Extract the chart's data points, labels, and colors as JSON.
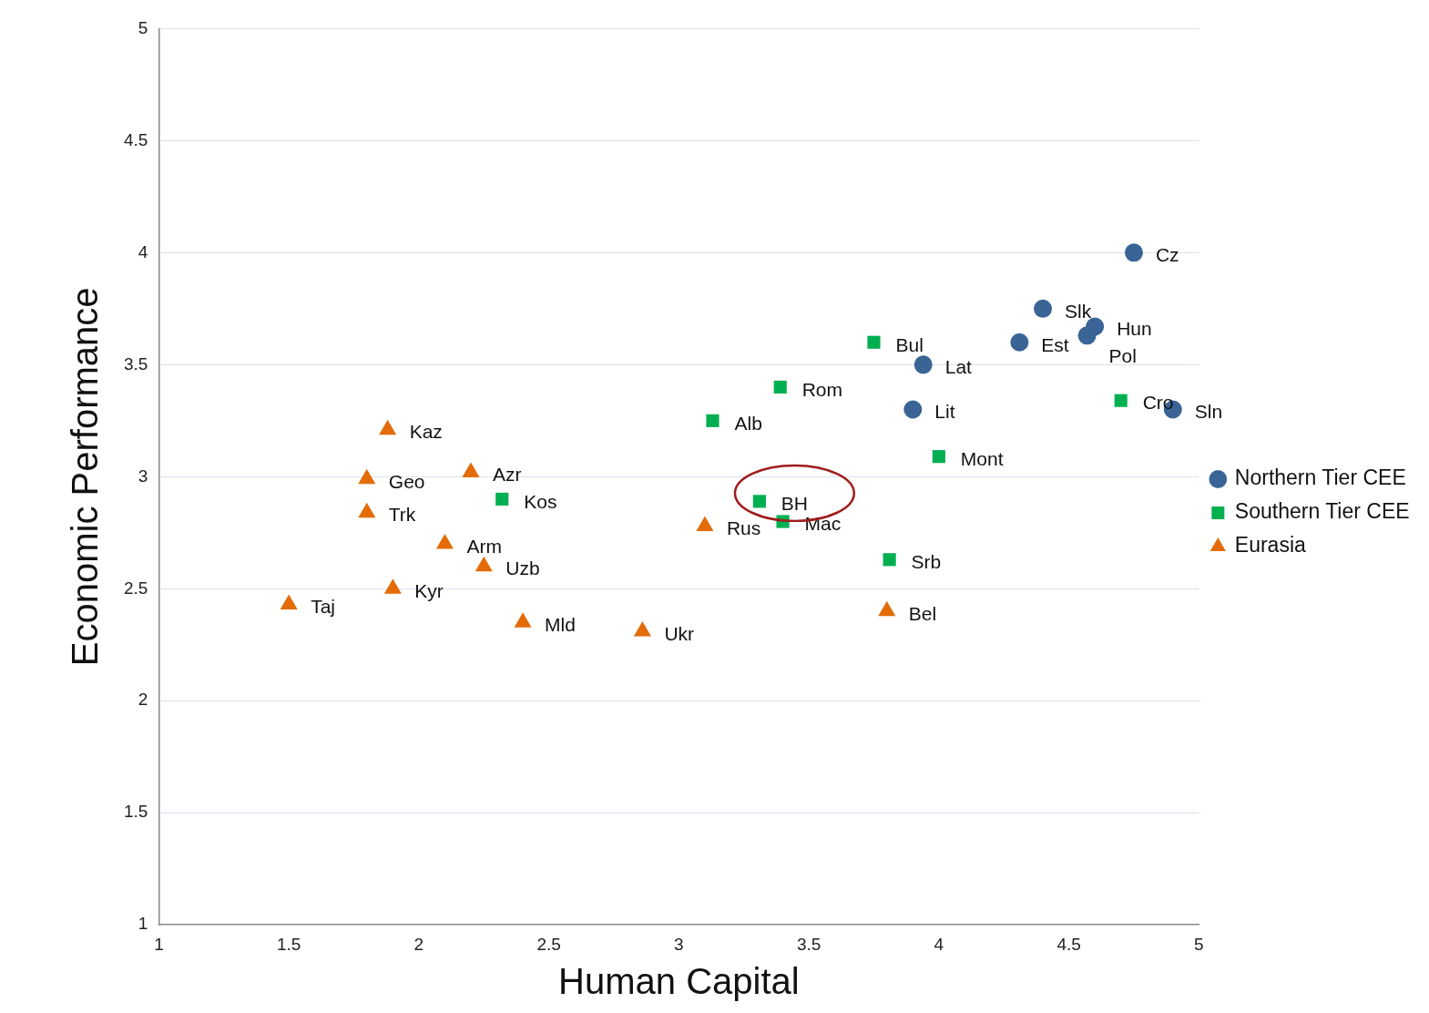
{
  "chart_data": {
    "type": "scatter",
    "xlabel": "Human Capital",
    "ylabel": "Economic Performance",
    "xlim": [
      1,
      5
    ],
    "xticks": [
      1,
      1.5,
      2,
      2.5,
      3,
      3.5,
      4,
      4.5,
      5
    ],
    "ylim": [
      1,
      5
    ],
    "yticks": [
      1,
      1.5,
      2,
      2.5,
      3,
      3.5,
      4,
      4.5,
      5
    ],
    "grid": "y",
    "legend": "right",
    "series": [
      {
        "name": "Northern Tier CEE",
        "color": "#3a6496",
        "marker": "circle",
        "x": [
          4.75,
          4.4,
          4.6,
          4.57,
          4.31,
          3.94,
          3.9,
          4.9
        ],
        "values": [
          4.0,
          3.75,
          3.67,
          3.63,
          3.6,
          3.5,
          3.3,
          3.3
        ]
      },
      {
        "name": "Southern Tier CEE",
        "color": "#00b050",
        "marker": "square",
        "x": [
          3.75,
          3.39,
          3.13,
          4.7,
          4.0,
          2.32,
          3.31,
          3.4,
          3.81
        ],
        "values": [
          3.6,
          3.4,
          3.25,
          3.34,
          3.09,
          2.9,
          2.89,
          2.8,
          2.63
        ]
      },
      {
        "name": "Eurasia",
        "color": "#e36c09",
        "marker": "triangle",
        "x": [
          1.88,
          1.8,
          2.2,
          1.8,
          2.1,
          2.25,
          1.9,
          1.5,
          2.4,
          2.86,
          3.1,
          3.8
        ],
        "values": [
          3.21,
          2.99,
          3.02,
          2.84,
          2.7,
          2.6,
          2.5,
          2.43,
          2.35,
          2.31,
          2.78,
          2.4
        ]
      }
    ],
    "annotations": [
      {
        "text": "Cz",
        "x": 4.75,
        "y": 4.0
      },
      {
        "text": "Slk",
        "x": 4.4,
        "y": 3.75
      },
      {
        "text": "Hun",
        "x": 4.6,
        "y": 3.67
      },
      {
        "text": "Pol",
        "x": 4.57,
        "y": 3.63
      },
      {
        "text": "Est",
        "x": 4.31,
        "y": 3.6
      },
      {
        "text": "Lat",
        "x": 3.94,
        "y": 3.5
      },
      {
        "text": "Lit",
        "x": 3.9,
        "y": 3.3
      },
      {
        "text": "Sln",
        "x": 4.9,
        "y": 3.3
      },
      {
        "text": "Bul",
        "x": 3.75,
        "y": 3.6
      },
      {
        "text": "Rom",
        "x": 3.39,
        "y": 3.4
      },
      {
        "text": "Alb",
        "x": 3.13,
        "y": 3.25
      },
      {
        "text": "Cro",
        "x": 4.7,
        "y": 3.34
      },
      {
        "text": "Mont",
        "x": 4.0,
        "y": 3.09
      },
      {
        "text": "Kos",
        "x": 2.32,
        "y": 2.9
      },
      {
        "text": "BH",
        "x": 3.31,
        "y": 2.89
      },
      {
        "text": "Mac",
        "x": 3.4,
        "y": 2.8
      },
      {
        "text": "Srb",
        "x": 3.81,
        "y": 2.63
      },
      {
        "text": "Kaz",
        "x": 1.88,
        "y": 3.21
      },
      {
        "text": "Geo",
        "x": 1.8,
        "y": 2.99
      },
      {
        "text": "Azr",
        "x": 2.2,
        "y": 3.02
      },
      {
        "text": "Trk",
        "x": 1.8,
        "y": 2.84
      },
      {
        "text": "Arm",
        "x": 2.1,
        "y": 2.7
      },
      {
        "text": "Uzb",
        "x": 2.25,
        "y": 2.6
      },
      {
        "text": "Kyr",
        "x": 1.9,
        "y": 2.5
      },
      {
        "text": "Taj",
        "x": 1.5,
        "y": 2.43
      },
      {
        "text": "Mld",
        "x": 2.4,
        "y": 2.35
      },
      {
        "text": "Ukr",
        "x": 2.86,
        "y": 2.31
      },
      {
        "text": "Rus",
        "x": 3.1,
        "y": 2.78
      },
      {
        "text": "Bel",
        "x": 3.8,
        "y": 2.4
      }
    ]
  }
}
